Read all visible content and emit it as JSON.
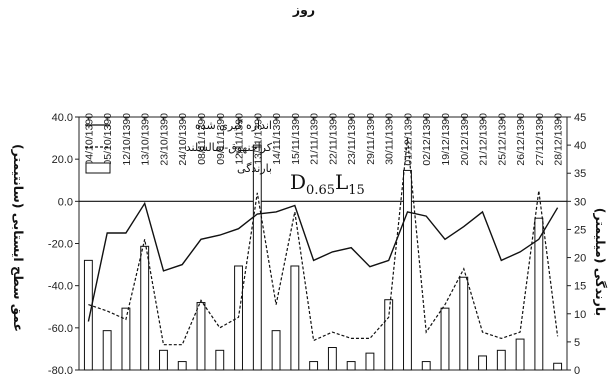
{
  "chart_data": {
    "type": "bar+line",
    "xlabel": "روز",
    "ylabel_left": "عمق سطح ایستابی (سانتیمتر)",
    "ylabel_right": "بارندگی (میلیمتر)",
    "ylim_left": [
      -80,
      40
    ],
    "ylim_right": [
      0,
      45
    ],
    "yticks_left": [
      "-80.0",
      "-60.0",
      "-40.0",
      "-20.0",
      "0.0",
      "20.0",
      "40.0"
    ],
    "yticks_right": [
      "0",
      "5",
      "10",
      "15",
      "20",
      "25",
      "30",
      "35",
      "40",
      "45"
    ],
    "categories": [
      "04/10/1390",
      "05/10/1390",
      "12/10/1390",
      "13/10/1390",
      "23/10/1390",
      "24/10/1390",
      "08/11/1390",
      "09/11/1390",
      "12/11/1390",
      "13/11/1390",
      "14/11/1390",
      "15/11/1390",
      "21/11/1390",
      "22/11/1390",
      "23/11/1390",
      "29/11/1390",
      "30/11/1390",
      "01/12/1390",
      "02/12/1390",
      "19/12/1390",
      "20/12/1390",
      "21/12/1390",
      "25/12/1390",
      "26/12/1390",
      "27/12/1390",
      "28/12/1390"
    ],
    "series": [
      {
        "name": "اندازه گیری شده",
        "kind": "line",
        "axis": "left",
        "style": "solid",
        "values": [
          -57,
          -15,
          -15,
          -1,
          -33,
          -30,
          -18,
          -16,
          -13,
          -6,
          -5,
          -2,
          -28,
          -24,
          -22,
          -31,
          -28,
          -5,
          -7,
          -18,
          -12,
          -5,
          -28,
          -24,
          -18,
          -3
        ]
      },
      {
        "name": "کراچنهوق-سالسلند",
        "kind": "line",
        "axis": "left",
        "style": "dashed",
        "values": [
          -49,
          -52,
          -56,
          -18,
          -68,
          -68,
          -47,
          -60,
          -55,
          4,
          -49,
          -5,
          -66,
          -62,
          -65,
          -65,
          -55,
          30,
          -62,
          -49,
          -32,
          -62,
          -65,
          -62,
          5,
          -64
        ]
      },
      {
        "name": "بارندگی",
        "kind": "bar",
        "axis": "right",
        "values": [
          19.5,
          7,
          11,
          22,
          3.5,
          1.5,
          12,
          3.5,
          18.5,
          40,
          7,
          18.5,
          1.5,
          4,
          1.5,
          3,
          12.5,
          35.5,
          1.5,
          11,
          16.5,
          2.5,
          3.5,
          5.5,
          27,
          1.2
        ]
      }
    ],
    "legend": {
      "placement": "top-right",
      "entries": [
        "اندازه گیری شده",
        "کراچنهوق-سالسلند",
        "بارندگی"
      ]
    },
    "annotation": {
      "text": "D",
      "sub1": "0.65",
      "text2": "L",
      "sub2": "15"
    }
  }
}
